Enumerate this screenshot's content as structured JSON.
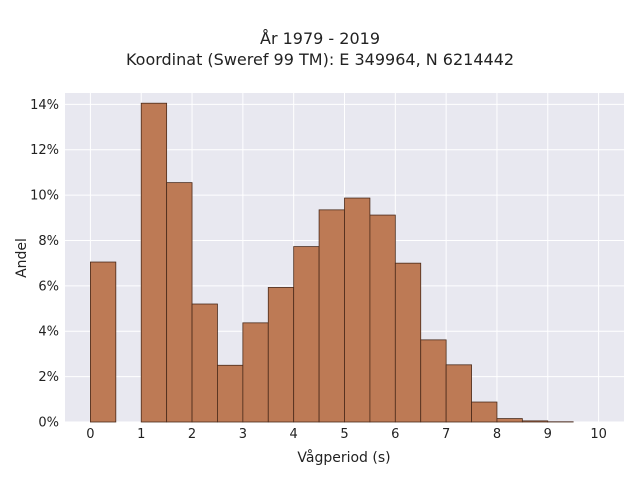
{
  "titles": {
    "line1": "År 1979 - 2019",
    "line2": "Koordinat (Sweref 99 TM): E 349964, N 6214442"
  },
  "chart_data": {
    "type": "bar",
    "xlabel": "Vågperiod (s)",
    "ylabel": "Andel",
    "xlim": [
      -0.5,
      10.5
    ],
    "ylim": [
      0,
      0.145
    ],
    "xticks": [
      0,
      1,
      2,
      3,
      4,
      5,
      6,
      7,
      8,
      9,
      10
    ],
    "yticks": [
      0,
      0.02,
      0.04,
      0.06,
      0.08,
      0.1,
      0.12,
      0.14
    ],
    "ytick_labels": [
      "0%",
      "2%",
      "4%",
      "6%",
      "8%",
      "10%",
      "12%",
      "14%"
    ],
    "bin_width": 0.5,
    "bin_starts": [
      0,
      0.5,
      1.0,
      1.5,
      2.0,
      2.5,
      3.0,
      3.5,
      4.0,
      4.5,
      5.0,
      5.5,
      6.0,
      6.5,
      7.0,
      7.5,
      8.0,
      8.5,
      9.0,
      9.5
    ],
    "values": [
      0.0705,
      0,
      0.1405,
      0.1055,
      0.052,
      0.025,
      0.0437,
      0.0593,
      0.0773,
      0.0935,
      0.0987,
      0.0912,
      0.07,
      0.0362,
      0.0252,
      0.0088,
      0.0015,
      0.0005,
      0.0001,
      0
    ],
    "grid": true,
    "bar_color": "#bd7a55",
    "bar_edge_color": "#4a2a1a",
    "plot_background": "#e8e8f0"
  }
}
